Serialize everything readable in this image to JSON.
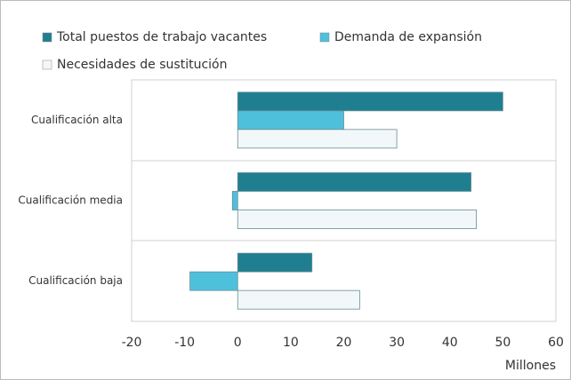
{
  "chart_data": {
    "type": "bar",
    "orientation": "horizontal",
    "categories": [
      "Cualificación alta",
      "Cualificación media",
      "Cualificación baja"
    ],
    "series": [
      {
        "name": "Total puestos de trabajo vacantes",
        "color": "#1f7f91",
        "values": [
          50,
          44,
          14
        ]
      },
      {
        "name": "Demanda de expansión",
        "color": "#4fc0dc",
        "values": [
          20,
          -1,
          -9
        ]
      },
      {
        "name": "Necesidades de sustitución",
        "color": "#f2f7f9",
        "values": [
          30,
          45,
          23
        ]
      }
    ],
    "xlim": [
      -20,
      60
    ],
    "xticks": [
      -20,
      -10,
      0,
      10,
      20,
      30,
      40,
      50,
      60
    ],
    "xlabel": "Millones",
    "legend": "top"
  }
}
